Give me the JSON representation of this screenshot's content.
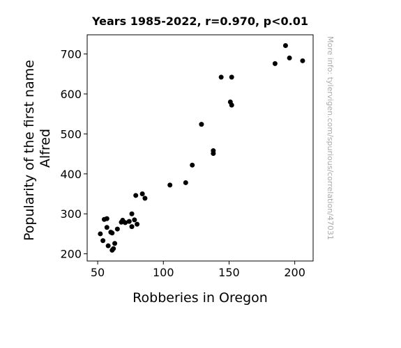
{
  "chart_data": {
    "type": "scatter",
    "title": "Years 1985-2022, r=0.970, p<0.01",
    "xlabel": "Robberies in Oregon",
    "ylabel_lines": [
      "Popularity of the first name",
      "Alfred"
    ],
    "xlim": [
      42,
      214
    ],
    "ylim": [
      182,
      748
    ],
    "xticks": [
      50,
      100,
      150,
      200
    ],
    "yticks": [
      200,
      300,
      400,
      500,
      600,
      700
    ],
    "marker_color": "#000000",
    "grid": false,
    "points": [
      {
        "x": 52,
        "y": 250
      },
      {
        "x": 54,
        "y": 233
      },
      {
        "x": 55,
        "y": 286
      },
      {
        "x": 57,
        "y": 288
      },
      {
        "x": 57,
        "y": 266
      },
      {
        "x": 58,
        "y": 220
      },
      {
        "x": 60,
        "y": 254
      },
      {
        "x": 61,
        "y": 252
      },
      {
        "x": 61,
        "y": 209
      },
      {
        "x": 62,
        "y": 213
      },
      {
        "x": 63,
        "y": 226
      },
      {
        "x": 65,
        "y": 262
      },
      {
        "x": 68,
        "y": 279
      },
      {
        "x": 69,
        "y": 284
      },
      {
        "x": 71,
        "y": 278
      },
      {
        "x": 74,
        "y": 281
      },
      {
        "x": 76,
        "y": 300
      },
      {
        "x": 76,
        "y": 268
      },
      {
        "x": 78,
        "y": 285
      },
      {
        "x": 79,
        "y": 346
      },
      {
        "x": 80,
        "y": 274
      },
      {
        "x": 84,
        "y": 350
      },
      {
        "x": 86,
        "y": 339
      },
      {
        "x": 105,
        "y": 372
      },
      {
        "x": 117,
        "y": 378
      },
      {
        "x": 122,
        "y": 422
      },
      {
        "x": 129,
        "y": 524
      },
      {
        "x": 138,
        "y": 451
      },
      {
        "x": 138,
        "y": 458
      },
      {
        "x": 144,
        "y": 642
      },
      {
        "x": 151,
        "y": 580
      },
      {
        "x": 152,
        "y": 572
      },
      {
        "x": 152,
        "y": 642
      },
      {
        "x": 185,
        "y": 676
      },
      {
        "x": 193,
        "y": 721
      },
      {
        "x": 196,
        "y": 690
      },
      {
        "x": 206,
        "y": 683
      }
    ]
  },
  "watermark": "More info: tylervigen.com/spurious/correlation/47031"
}
